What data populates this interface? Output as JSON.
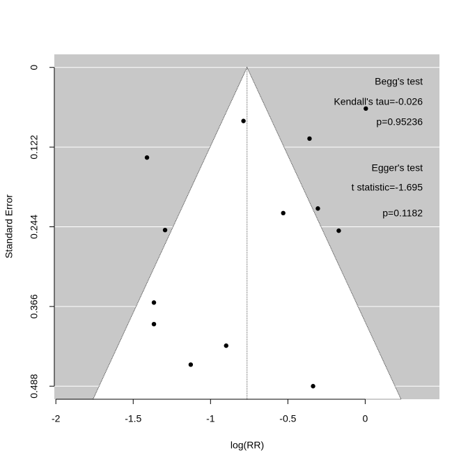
{
  "chart_data": {
    "type": "funnel",
    "x_label": "log(RR)",
    "y_label": "Standard Error",
    "x": [
      0.004,
      -0.787,
      -0.36,
      -1.411,
      -0.53,
      -0.306,
      -0.171,
      -1.294,
      -1.366,
      -1.366,
      -0.899,
      -1.128,
      -0.337
    ],
    "values": [
      0.063,
      0.082,
      0.109,
      0.138,
      0.223,
      0.216,
      0.25,
      0.249,
      0.36,
      0.393,
      0.426,
      0.455,
      0.488
    ],
    "summary_estimate": -0.764,
    "funnel_z": 1.96,
    "xlim": [
      -2.01,
      0.48
    ],
    "xticks": [
      -2,
      -1.5,
      -1,
      -0.5,
      0
    ],
    "ylim": [
      -0.02,
      0.508
    ],
    "yticks": [
      0,
      0.122,
      0.244,
      0.366,
      0.488
    ],
    "y_reversed": true,
    "grid": true,
    "color": "#000000",
    "background": "#c8c8c8",
    "annotations": [
      "Begg's test",
      "Kendall's tau=-0.026",
      "p=0.95236",
      "Egger's test",
      "t statistic=-1.695",
      "p=0.1182"
    ]
  }
}
